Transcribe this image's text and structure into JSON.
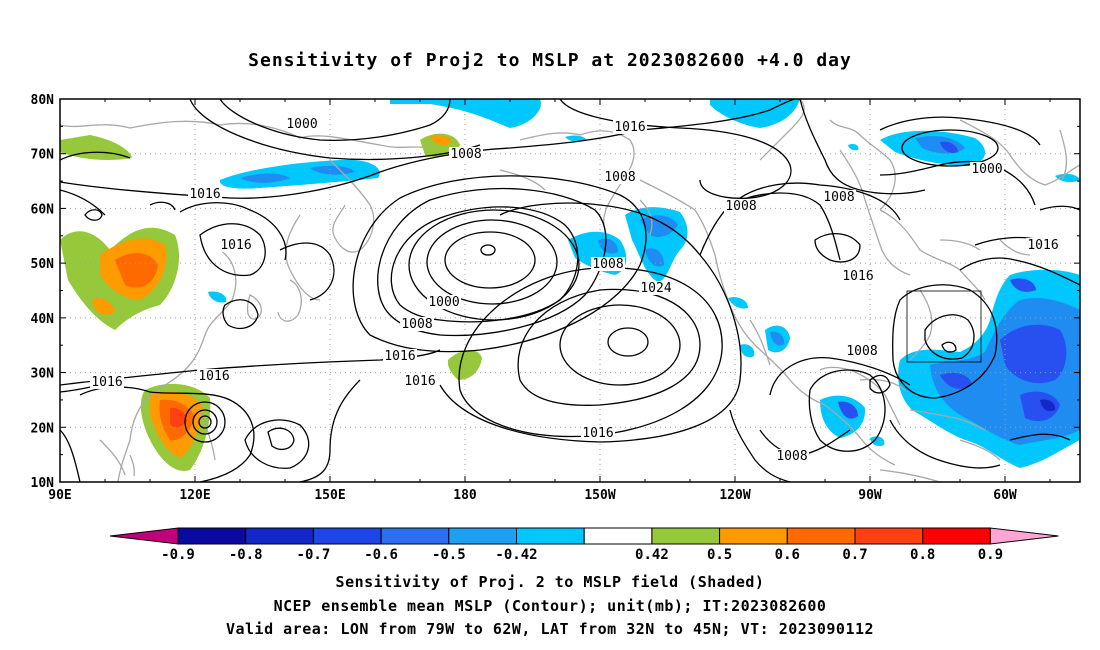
{
  "title": "Sensitivity of Proj2 to MSLP at 2023082600 +4.0 day",
  "map": {
    "lat_labels": [
      "80N",
      "70N",
      "60N",
      "50N",
      "40N",
      "30N",
      "20N",
      "10N"
    ],
    "lon_labels": [
      "90E",
      "120E",
      "150E",
      "180",
      "150W",
      "120W",
      "90W",
      "60W"
    ],
    "contour_labels": [
      {
        "text": "1000",
        "ref": "arctic-low"
      },
      {
        "text": "1008",
        "ref": "bering-ring"
      },
      {
        "text": "1016",
        "ref": "north-pacific"
      },
      {
        "text": "1008",
        "ref": "north-pacific-mid"
      },
      {
        "text": "1016",
        "ref": "siberia"
      },
      {
        "text": "1016",
        "ref": "east-asia"
      },
      {
        "text": "1000",
        "ref": "aleutian-low"
      },
      {
        "text": "1008",
        "ref": "aleutian-low"
      },
      {
        "text": "1016",
        "ref": "aleutian-low"
      },
      {
        "text": "1016",
        "ref": "subtropic"
      },
      {
        "text": "1016",
        "ref": "west-pacific"
      },
      {
        "text": "1008",
        "ref": "south-china"
      },
      {
        "text": "1016",
        "ref": "gulf-of-alaska"
      },
      {
        "text": "1024",
        "ref": "pacific-high"
      },
      {
        "text": "1016",
        "ref": "pacific-high"
      },
      {
        "text": "1008",
        "ref": "canada"
      },
      {
        "text": "1008",
        "ref": "hudson"
      },
      {
        "text": "1016",
        "ref": "great-lakes"
      },
      {
        "text": "1000",
        "ref": "greenland"
      },
      {
        "text": "1016",
        "ref": "atlantic"
      },
      {
        "text": "1008",
        "ref": "gulf-coast"
      },
      {
        "text": "1008",
        "ref": "mexico"
      }
    ],
    "colors": {
      "neg_09": "#c0007a",
      "neg_08": "#0000aa",
      "neg_07": "#1432d2",
      "neg_06": "#2850f0",
      "neg_05": "#1e8cf0",
      "neg_042": "#00c8ff",
      "zero": "#ffffff",
      "pos_042": "#96c83c",
      "pos_05": "#ff9a00",
      "pos_06": "#ff6a00",
      "pos_07": "#ff4010",
      "pos_08": "#ff0000",
      "pos_09": "#ff9ed2",
      "coast": "#a8a8a8",
      "contour": "#000000",
      "grid": "#a0a0a0"
    },
    "valid_area_box": {
      "lon_min": -79,
      "lon_max": -62,
      "lat_min": 32,
      "lat_max": 45
    }
  },
  "colorbar": {
    "ticks": [
      "-0.9",
      "-0.8",
      "-0.7",
      "-0.6",
      "-0.5",
      "-0.42",
      "0.42",
      "0.5",
      "0.6",
      "0.7",
      "0.8",
      "0.9"
    ],
    "segment_colors": [
      "#0a0aa0",
      "#1428c8",
      "#1e46e6",
      "#2d6ef0",
      "#1ea0f0",
      "#00c8ff",
      "#ffffff",
      "#96c83c",
      "#ff9a00",
      "#ff6a00",
      "#ff4010",
      "#ff0000"
    ],
    "low_end_color": "#c0007a",
    "high_end_color": "#ffa6d4"
  },
  "captions": [
    "Sensitivity of Proj. 2 to MSLP field (Shaded)",
    "NCEP ensemble mean MSLP (Contour); unit(mb); IT:2023082600",
    "Valid area: LON from 79W to 62W, LAT from 32N to 45N; VT: 2023090112"
  ]
}
